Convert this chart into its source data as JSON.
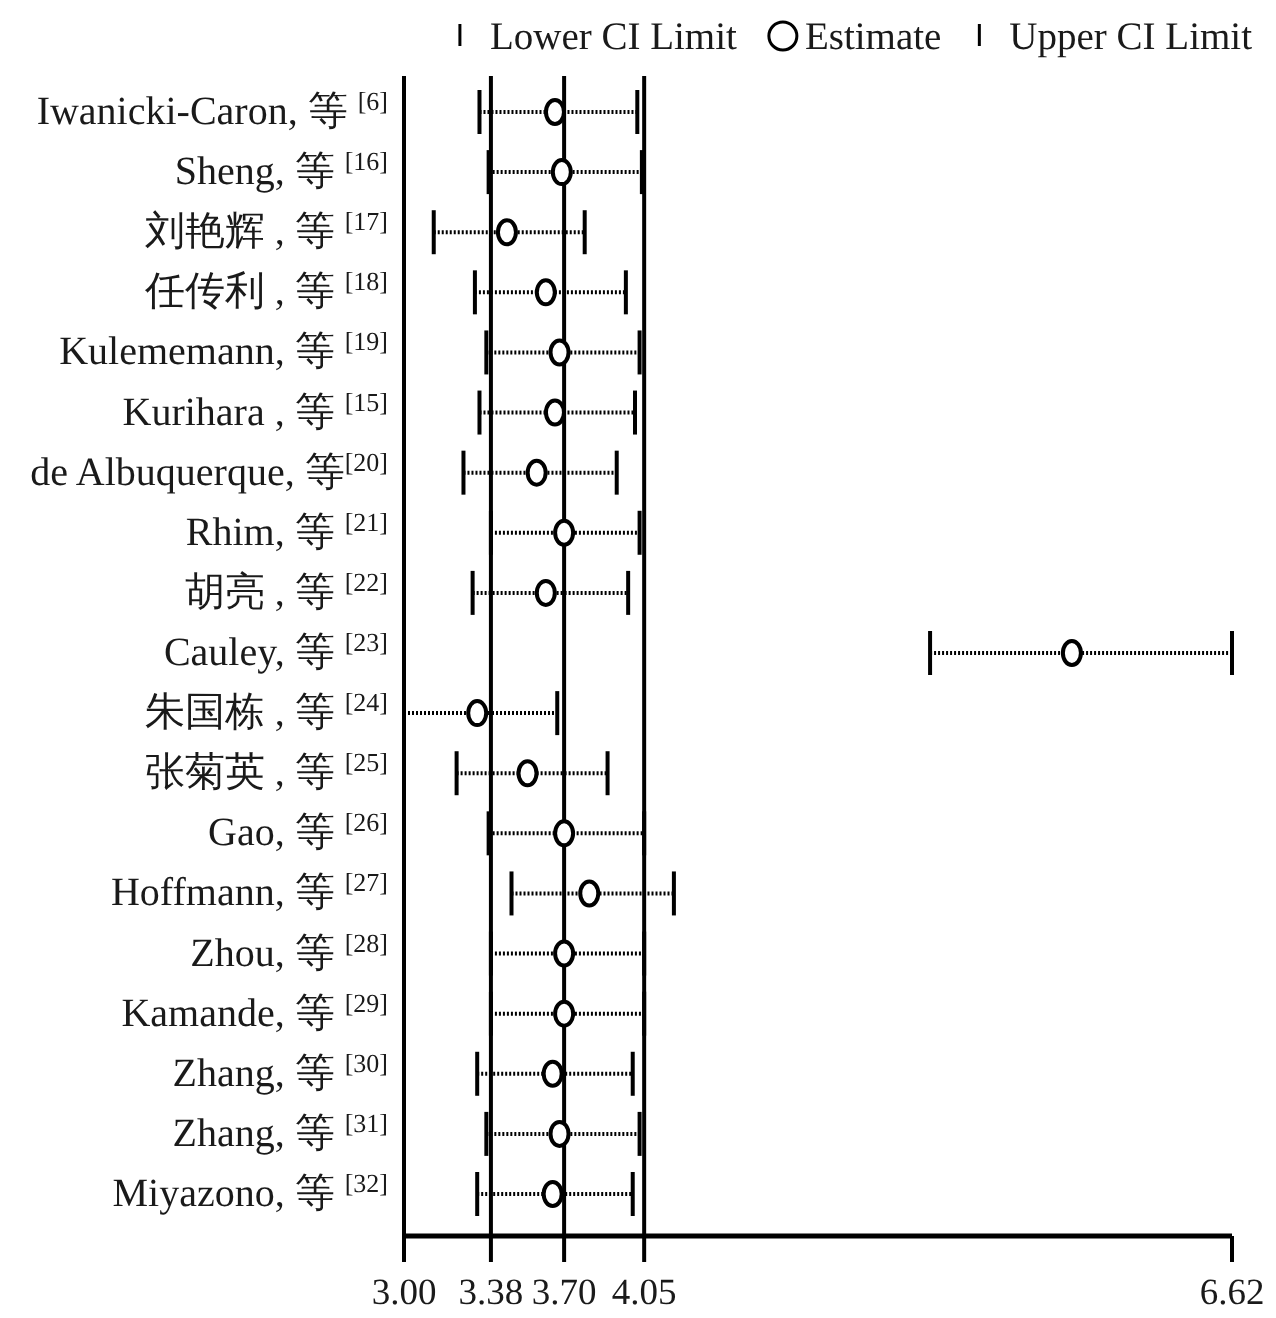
{
  "chart_data": {
    "type": "scatter",
    "orientation": "horizontal",
    "categories": [
      "Iwanicki-Caron, 等 $^{[6]}$",
      "Sheng, 等 $^{[16]}$",
      "刘艳辉 , 等 $^{[17]}$",
      "任传利 , 等 $^{[18]}$",
      "Kulememann, 等 $^{[19]}$",
      "Kurihara , 等 $^{[15]}$",
      "de Albuquerque, 等$^{[20]}$",
      "Rhim, 等 $^{[21]}$",
      "胡亮 , 等 $^{[22]}$",
      "Cauley, 等 $^{[23]}$",
      "朱国栋 , 等 $^{[24]}$",
      "张菊英 , 等 $^{[25]}$",
      "Gao, 等 $^{[26]}$",
      "Hoffmann, 等 $^{[27]}$",
      "Zhou, 等 $^{[28]}$",
      "Kamande, 等 $^{[29]}$",
      "Zhang, 等 $^{[30]}$",
      "Zhang, 等 $^{[31]}$",
      "Miyazono, 等 $^{[32]}$"
    ],
    "series": [
      {
        "name": "Estimate",
        "color": "#000000",
        "values": [
          3.66,
          3.69,
          3.45,
          3.62,
          3.68,
          3.66,
          3.58,
          3.7,
          3.62,
          5.92,
          3.32,
          3.54,
          3.7,
          3.81,
          3.7,
          3.7,
          3.65,
          3.68,
          3.65
        ],
        "errors": [
          [
            3.33,
            4.02
          ],
          [
            3.37,
            4.04
          ],
          [
            3.13,
            3.79
          ],
          [
            3.31,
            3.97
          ],
          [
            3.36,
            4.03
          ],
          [
            3.33,
            4.01
          ],
          [
            3.26,
            3.93
          ],
          [
            3.38,
            4.03
          ],
          [
            3.3,
            3.98
          ],
          [
            5.3,
            6.62
          ],
          [
            3.0,
            3.67
          ],
          [
            3.23,
            3.89
          ],
          [
            3.37,
            4.05
          ],
          [
            3.47,
            4.18
          ],
          [
            3.38,
            4.05
          ],
          [
            3.38,
            4.05
          ],
          [
            3.32,
            4.0
          ],
          [
            3.36,
            4.03
          ],
          [
            3.32,
            4.0
          ]
        ]
      }
    ],
    "xlim": [
      3.0,
      6.62
    ],
    "xticks": [
      {
        "value": 3.0,
        "label": "3.00"
      },
      3.38,
      {
        "value": 3.7,
        "label": "3.70"
      },
      4.05,
      6.62
    ],
    "ref_lines": [
      {
        "axis": "x",
        "value": 3.38,
        "color": "#000000"
      },
      {
        "axis": "x",
        "value": 3.7,
        "color": "#000000"
      },
      {
        "axis": "x",
        "value": 4.05,
        "color": "#000000"
      }
    ],
    "marker": "circle",
    "legend": "top",
    "annotations": [
      "Lower CI Limit",
      "Upper CI Limit"
    ]
  }
}
